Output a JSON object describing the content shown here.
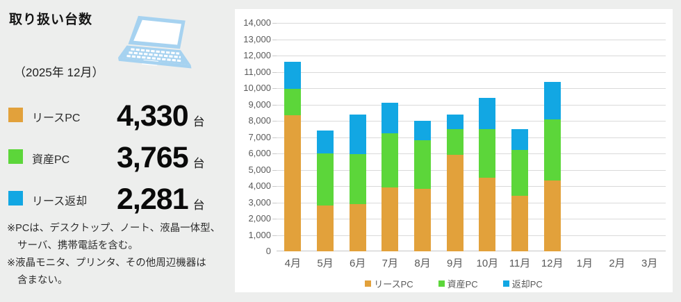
{
  "panel": {
    "title": "取り扱い台数",
    "period": "（2025年 12月）",
    "stats": [
      {
        "label": "リースPC",
        "value": "4,330",
        "unit": "台",
        "color_key": "lease"
      },
      {
        "label": "資産PC",
        "value": "3,765",
        "unit": "台",
        "color_key": "asset"
      },
      {
        "label": "リース返却",
        "value": "2,281",
        "unit": "台",
        "color_key": "return"
      }
    ],
    "notes": [
      "※PCは、デスクトップ、ノート、液晶一体型、",
      "サーバ、携帯電話を含む。",
      "※液晶モニタ、プリンタ、その他周辺機器は",
      "含まない。"
    ]
  },
  "colors": {
    "lease": "#E2A13B",
    "asset": "#5CD63A",
    "return": "#12A7E3",
    "laptop": "#A6D2F0",
    "background": "#EDEEED",
    "grid": "#D9D9D9",
    "axis_text": "#595959"
  },
  "chart_data": {
    "type": "bar",
    "stacked": true,
    "title": "",
    "xlabel": "",
    "ylabel": "",
    "categories": [
      "4月",
      "5月",
      "6月",
      "7月",
      "8月",
      "9月",
      "10月",
      "11月",
      "12月",
      "1月",
      "2月",
      "3月"
    ],
    "series": [
      {
        "name": "リースPC",
        "color": "#E2A13B",
        "values": [
          8350,
          2800,
          2900,
          3900,
          3850,
          5900,
          4500,
          3400,
          4330,
          0,
          0,
          0
        ]
      },
      {
        "name": "資産PC",
        "color": "#5CD63A",
        "values": [
          1600,
          3200,
          3050,
          3350,
          2950,
          1600,
          3000,
          2800,
          3765,
          0,
          0,
          0
        ]
      },
      {
        "name": "返却PC",
        "color": "#12A7E3",
        "values": [
          1650,
          1400,
          2450,
          1850,
          1200,
          900,
          1900,
          1300,
          2281,
          0,
          0,
          0
        ]
      }
    ],
    "stack_totals": [
      11600,
      7400,
      8400,
      9100,
      8000,
      8400,
      9400,
      7500,
      10376,
      0,
      0,
      0
    ],
    "ylim": [
      0,
      14000
    ],
    "ytick_step": 1000,
    "yticks": [
      "0",
      "1,000",
      "2,000",
      "3,000",
      "4,000",
      "5,000",
      "6,000",
      "7,000",
      "8,000",
      "9,000",
      "10,000",
      "11,000",
      "12,000",
      "13,000",
      "14,000"
    ],
    "grid": true,
    "legend_position": "bottom"
  }
}
